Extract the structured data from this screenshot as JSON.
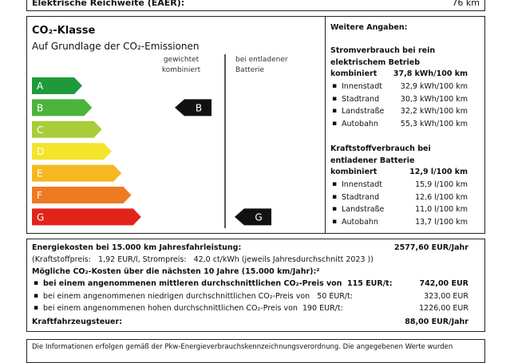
{
  "header": {
    "label": "Elektrische Reichweite (EAER):",
    "value": "76 km"
  },
  "co2_class": {
    "title": "CO₂-Klasse",
    "subtitle": "Auf Grundlage der CO₂-Emissionen",
    "col_weighted": "gewichtet kombiniert",
    "col_discharged": "bei entladener Batterie",
    "classes": [
      "A",
      "B",
      "C",
      "D",
      "E",
      "F",
      "G"
    ],
    "weighted": "B",
    "discharged": "G"
  },
  "details": {
    "title": "Weitere Angaben:",
    "electric": {
      "heading": "Stromverbrauch bei rein elektrischem Betrieb",
      "combined_label": "kombiniert",
      "combined_value": "37,8 kWh/100 km",
      "rows": [
        {
          "label": "Innenstadt",
          "value": "32,9 kWh/100 km"
        },
        {
          "label": "Stadtrand",
          "value": "30,3 kWh/100 km"
        },
        {
          "label": "Landstraße",
          "value": "32,2 kWh/100 km"
        },
        {
          "label": "Autobahn",
          "value": "55,3 kWh/100 km"
        }
      ]
    },
    "fuel": {
      "heading": "Kraftstoffverbrauch bei entladener Batterie",
      "combined_label": "kombiniert",
      "combined_value": "12,9 l/100 km",
      "rows": [
        {
          "label": "Innenstadt",
          "value": "15,9 l/100 km"
        },
        {
          "label": "Stadtrand",
          "value": "12,6 l/100 km"
        },
        {
          "label": "Landstraße",
          "value": "11,0 l/100 km"
        },
        {
          "label": "Autobahn",
          "value": "13,7 l/100 km"
        }
      ]
    }
  },
  "costs": {
    "energy_label": "Energiekosten bei 15.000 km Jahresfahrleistung:",
    "energy_value": "2577,60 EUR/Jahr",
    "prices": "(Kraftstoffpreis:   1,92 EUR/l, Strompreis:   42,0 ct/kWh (jeweils Jahresdurchschnitt 2023 ))",
    "co2_heading": "Mögliche CO₂-Kosten über die nächsten 10 Jahre (15.000 km/Jahr):²",
    "co2_rows": [
      {
        "label": "bei einem angenommenen mittleren durchschnittlichen CO₂-Preis von  115 EUR/t:",
        "value": "742,00 EUR"
      },
      {
        "label": "bei einem angenommenen niedrigen durchschnittlichen CO₂-Preis von   50 EUR/t:",
        "value": "323,00 EUR"
      },
      {
        "label": "bei einem angenommenen hohen durchschnittlichen CO₂-Preis von  190 EUR/t:",
        "value": "1226,00 EUR"
      }
    ],
    "tax_label": "Kraftfahrzeugsteuer:",
    "tax_value": "88,00 EUR/Jahr"
  },
  "footer": "Die Informationen erfolgen gemäß der Pkw-Energieverbrauchskennzeichnungsverordnung. Die angegebenen Werte wurden"
}
